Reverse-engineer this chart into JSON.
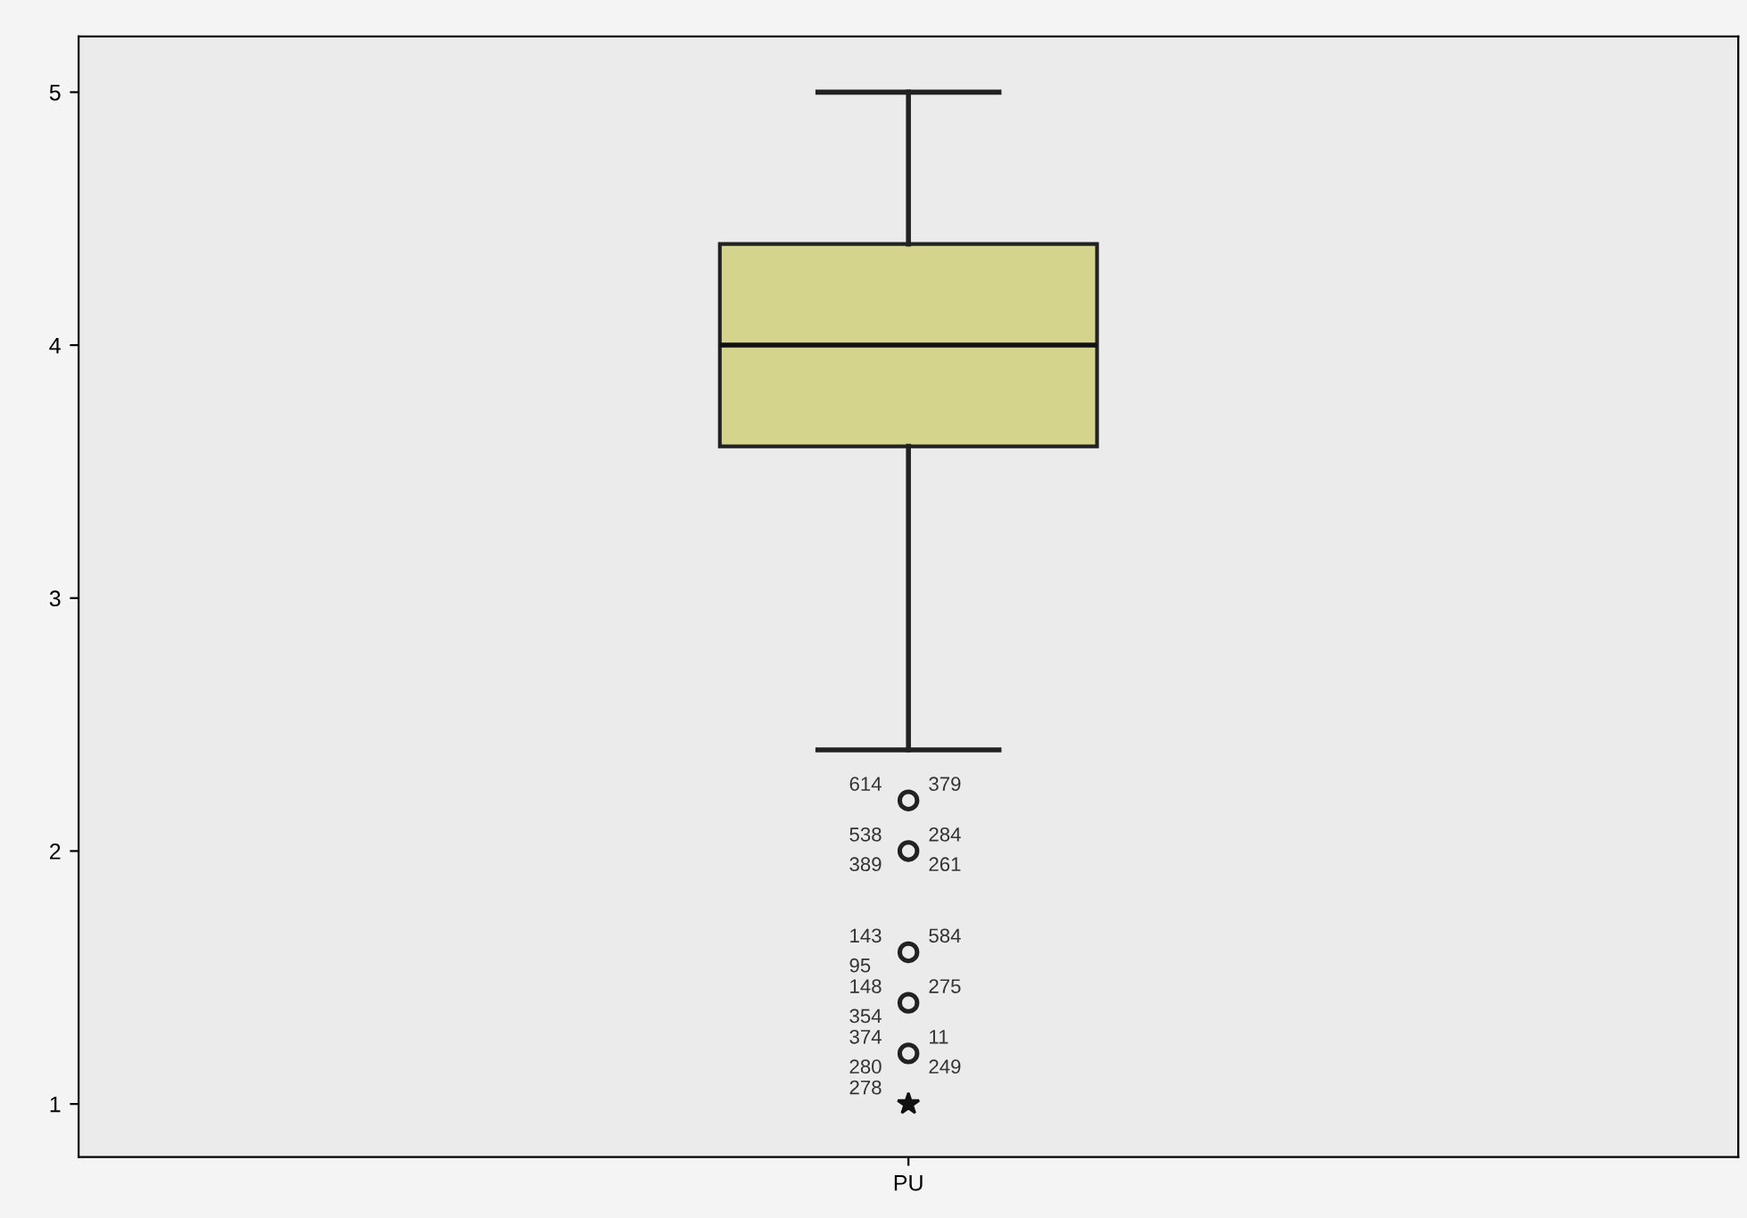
{
  "chart_data": {
    "type": "box",
    "categories": [
      "PU"
    ],
    "boxes": [
      {
        "low": 2.4,
        "q1": 3.6,
        "median": 4.0,
        "q3": 4.4,
        "high": 5.0
      }
    ],
    "series": [
      {
        "type": "scatter",
        "marker": "circle",
        "color": "#222222",
        "x": [
          "PU",
          "PU",
          "PU",
          "PU",
          "PU"
        ],
        "values": [
          2.2,
          2.0,
          1.6,
          1.4,
          1.2
        ]
      },
      {
        "type": "scatter",
        "marker": "star",
        "color": "#111111",
        "x": [
          "PU"
        ],
        "values": [
          1.0
        ]
      }
    ],
    "color": "#d4d48c",
    "ylim": [
      0.79,
      5.22
    ],
    "yticks": [
      1,
      2,
      3,
      4,
      5
    ],
    "grid": false,
    "legend": false,
    "annotations": [
      {
        "text": "614",
        "x": "PU",
        "y": 2.2
      },
      {
        "text": "379",
        "x": "PU",
        "y": 2.2
      },
      {
        "text": "538",
        "x": "PU",
        "y": 2.0
      },
      {
        "text": "284",
        "x": "PU",
        "y": 2.0
      },
      {
        "text": "389",
        "x": "PU",
        "y": 2.0
      },
      {
        "text": "261",
        "x": "PU",
        "y": 2.0
      },
      {
        "text": "143",
        "x": "PU",
        "y": 1.6
      },
      {
        "text": "584",
        "x": "PU",
        "y": 1.6
      },
      {
        "text": "95",
        "x": "PU",
        "y": 1.6
      },
      {
        "text": "148",
        "x": "PU",
        "y": 1.4
      },
      {
        "text": "275",
        "x": "PU",
        "y": 1.4
      },
      {
        "text": "354",
        "x": "PU",
        "y": 1.4
      },
      {
        "text": "374",
        "x": "PU",
        "y": 1.2
      },
      {
        "text": "11",
        "x": "PU",
        "y": 1.2
      },
      {
        "text": "280",
        "x": "PU",
        "y": 1.2
      },
      {
        "text": "249",
        "x": "PU",
        "y": 1.2
      },
      {
        "text": "278",
        "x": "PU",
        "y": 1.0
      }
    ]
  }
}
